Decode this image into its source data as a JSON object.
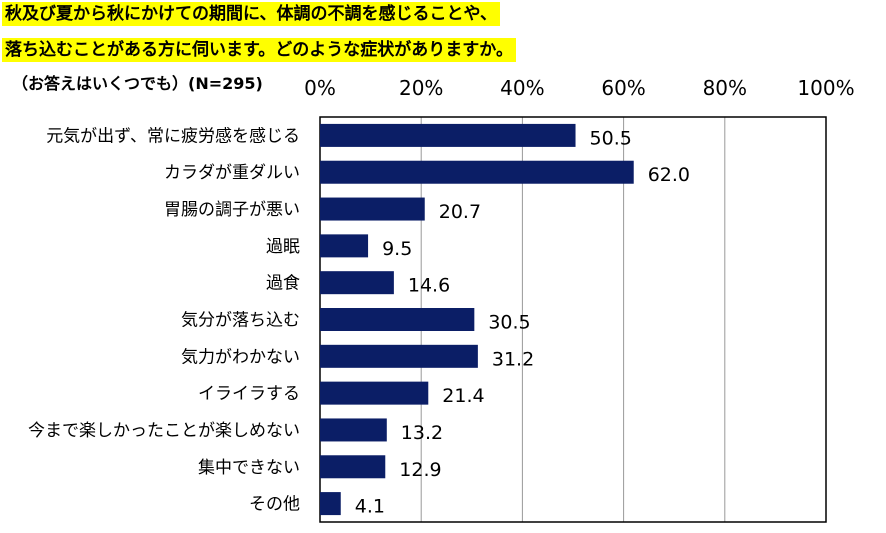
{
  "question": {
    "line1": "秋及び夏から秋にかけての期間に、体調の不調を感じることや、",
    "line2": "落ち込むことがある方に伺います。どのような症状がありますか。"
  },
  "note": "（お答えはいくつでも）(N=295)",
  "colors": {
    "bar": "#0b1e66",
    "grid": "#999999",
    "highlight": "#ffff00"
  },
  "chart_data": {
    "type": "bar",
    "orientation": "horizontal",
    "categories": [
      "元気が出ず、常に疲労感を感じる",
      "カラダが重ダルい",
      "胃腸の調子が悪い",
      "過眠",
      "過食",
      "気分が落ち込む",
      "気力がわかない",
      "イライラする",
      "今まで楽しかったことが楽しめない",
      "集中できない",
      "その他"
    ],
    "values": [
      50.5,
      62.0,
      20.7,
      9.5,
      14.6,
      30.5,
      31.2,
      21.4,
      13.2,
      12.9,
      4.1
    ],
    "value_labels": [
      "50.5",
      "62.0",
      "20.7",
      "9.5",
      "14.6",
      "30.5",
      "31.2",
      "21.4",
      "13.2",
      "12.9",
      "4.1"
    ],
    "xlim": [
      0,
      100
    ],
    "xticks": [
      "0%",
      "20%",
      "40%",
      "60%",
      "80%",
      "100%"
    ],
    "grid": true
  }
}
